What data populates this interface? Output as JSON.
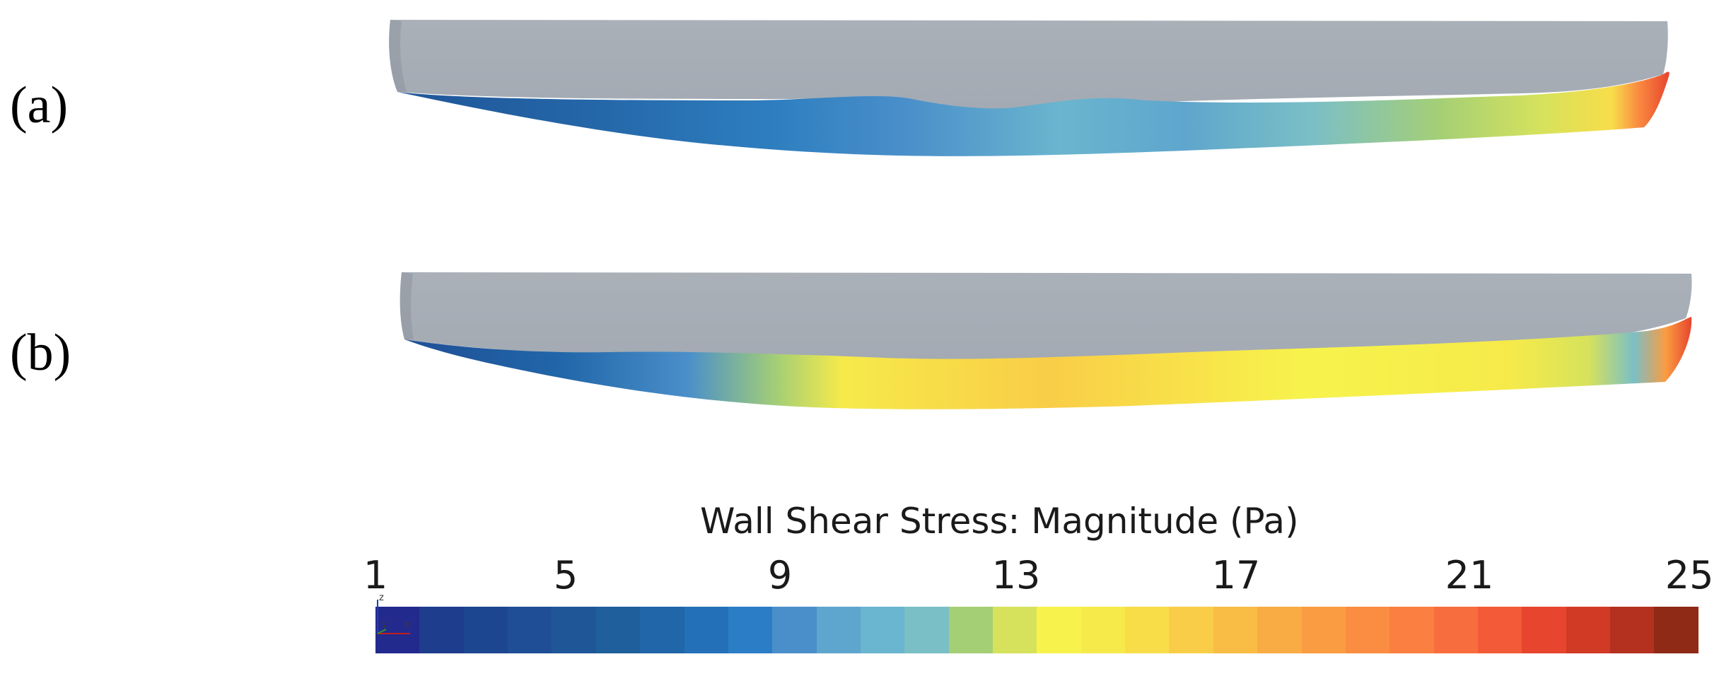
{
  "panels": [
    {
      "label": "(a)"
    },
    {
      "label": "(b)"
    }
  ],
  "colorbar": {
    "title": "Wall Shear Stress: Magnitude (Pa)",
    "min": 1,
    "max": 25,
    "ticks": [
      "1",
      "5",
      "9",
      "13",
      "17",
      "21",
      "25"
    ],
    "colors": [
      "#232a8e",
      "#1e3d8c",
      "#1d4690",
      "#1f4e96",
      "#1f5698",
      "#1f5f9c",
      "#2066a8",
      "#2470b8",
      "#2b7dc5",
      "#4a8fca",
      "#5ea6cd",
      "#6ab5cf",
      "#7bbfc6",
      "#a5cf75",
      "#d6e25c",
      "#f7f34c",
      "#f6ea4a",
      "#f8dd49",
      "#f9cd47",
      "#f9bc45",
      "#f9ac43",
      "#fa9c42",
      "#fa8d41",
      "#fa7f40",
      "#f86d3d",
      "#f35a37",
      "#e7452e",
      "#d13a25",
      "#b43120",
      "#8f2a16"
    ],
    "axes": {
      "z": "z",
      "y": "y",
      "x": "x"
    }
  }
}
